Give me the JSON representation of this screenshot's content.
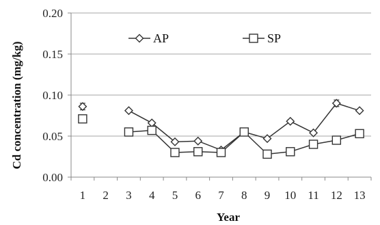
{
  "chart_data": {
    "type": "line",
    "title": "",
    "xlabel": "Year",
    "ylabel": "Cd concentration (mg/kg)",
    "categories": [
      "1",
      "2",
      "3",
      "4",
      "5",
      "6",
      "7",
      "8",
      "9",
      "10",
      "11",
      "12",
      "13"
    ],
    "ylim": [
      0,
      0.2
    ],
    "yticks": [
      "0.00",
      "0.05",
      "0.10",
      "0.15",
      "0.20"
    ],
    "ytick_values": [
      0,
      0.05,
      0.1,
      0.15,
      0.2
    ],
    "grid": "horizontal",
    "legend_position": "top-left",
    "series": [
      {
        "name": "AP",
        "marker": "diamond",
        "color": "#333333",
        "values": [
          0.086,
          null,
          0.081,
          0.066,
          0.043,
          0.044,
          0.033,
          0.055,
          0.047,
          0.068,
          0.054,
          0.09,
          0.081
        ],
        "error": [
          0.004,
          null,
          0,
          0,
          0,
          0,
          0,
          0,
          0,
          0.002,
          0,
          0.004,
          0
        ]
      },
      {
        "name": "SP",
        "marker": "square",
        "color": "#333333",
        "values": [
          0.071,
          null,
          0.055,
          0.057,
          0.03,
          0.031,
          0.03,
          0.055,
          0.028,
          0.031,
          0.04,
          0.045,
          0.053
        ],
        "error": [
          0,
          null,
          0,
          0,
          0,
          0,
          0,
          0,
          0,
          0,
          0,
          0,
          0
        ]
      }
    ]
  }
}
